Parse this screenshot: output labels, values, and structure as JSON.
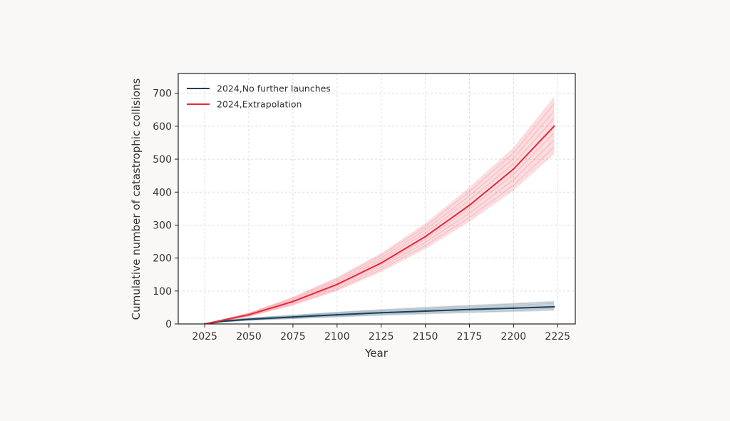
{
  "chart_data": {
    "type": "line",
    "title": "",
    "xlabel": "Year",
    "ylabel": "Cumulative number of catastrophic collisions",
    "xlim": [
      2010,
      2235
    ],
    "ylim": [
      0,
      760
    ],
    "xticks": [
      2025,
      2050,
      2075,
      2100,
      2125,
      2150,
      2175,
      2200,
      2225
    ],
    "yticks": [
      0,
      100,
      200,
      300,
      400,
      500,
      600,
      700
    ],
    "grid": true,
    "legend_position": "top-left",
    "series": [
      {
        "name": "2024,No further launches",
        "color": "#17405c",
        "x": [
          2025,
          2030,
          2035,
          2050,
          2075,
          2100,
          2125,
          2150,
          2175,
          2200,
          2223
        ],
        "y": [
          0,
          4,
          8,
          14,
          21,
          28,
          34,
          39,
          44,
          48,
          52
        ],
        "band_upper": [
          0,
          6,
          11,
          19,
          28,
          37,
          45,
          52,
          58,
          64,
          70
        ],
        "band_lower": [
          0,
          2,
          5,
          10,
          15,
          20,
          25,
          29,
          33,
          36,
          40
        ]
      },
      {
        "name": "2024,Extrapolation",
        "color": "#e8283a",
        "x": [
          2025,
          2050,
          2075,
          2100,
          2125,
          2150,
          2175,
          2200,
          2223
        ],
        "y": [
          0,
          28,
          68,
          120,
          185,
          265,
          360,
          470,
          600
        ],
        "band_upper": [
          0,
          34,
          82,
          142,
          215,
          305,
          415,
          535,
          690
        ],
        "band_lower": [
          0,
          22,
          56,
          100,
          158,
          228,
          310,
          405,
          515
        ]
      }
    ]
  }
}
